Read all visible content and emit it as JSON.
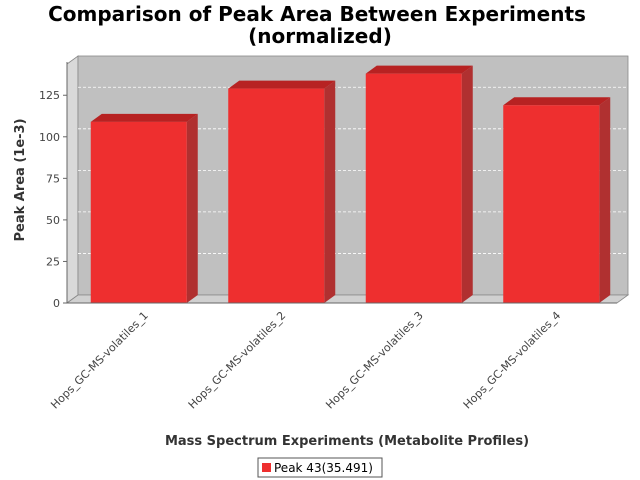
{
  "chart_data": {
    "type": "bar",
    "title_lines": [
      "Comparison of Peak Area Between Experiments",
      "(normalized)"
    ],
    "xlabel": "Mass Spectrum Experiments (Metabolite Profiles)",
    "ylabel": "Peak Area (1e-3)",
    "categories": [
      "Hops_GC-MS-volatiles_1",
      "Hops_GC-MS-volatiles_2",
      "Hops_GC-MS-volatiles_3",
      "Hops_GC-MS-volatiles_4"
    ],
    "series": [
      {
        "name": "Peak 43(35.491)",
        "values": [
          109,
          129,
          138,
          119
        ]
      }
    ],
    "y_ticks": [
      "0",
      "25",
      "50",
      "75",
      "100",
      "125"
    ],
    "ylim": [
      0,
      145
    ],
    "grid": true,
    "legend_position": "bottom",
    "colors": {
      "bar_front": "#ee2f2f",
      "bar_top": "#b72222",
      "bar_side": "#b03030",
      "plot_bg": "#c0c0c0",
      "wall": "#d9d9d9",
      "floor": "#d0d0d0"
    }
  }
}
